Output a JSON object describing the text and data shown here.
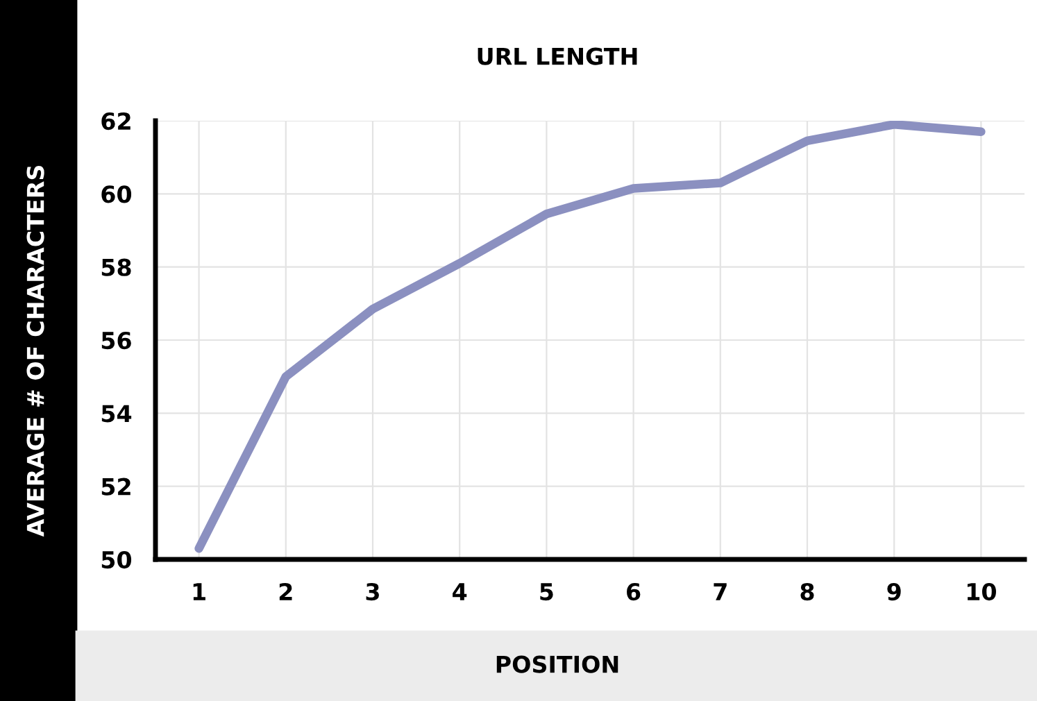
{
  "chart_data": {
    "type": "line",
    "title": "URL LENGTH",
    "xlabel": "POSITION",
    "ylabel": "AVERAGE # OF CHARACTERS",
    "x": [
      1,
      2,
      3,
      4,
      5,
      6,
      7,
      8,
      9,
      10
    ],
    "series": [
      {
        "color": "#8b90c0",
        "values": [
          50.3,
          55.0,
          56.85,
          58.1,
          59.45,
          60.15,
          60.3,
          61.45,
          61.9,
          61.7
        ]
      }
    ],
    "xlim": [
      0.5,
      10.5
    ],
    "xticks": [
      1,
      2,
      3,
      4,
      5,
      6,
      7,
      8,
      9,
      10
    ],
    "ylim": [
      50,
      62
    ],
    "yticks": [
      50,
      52,
      54,
      56,
      58,
      60,
      62
    ],
    "grid": true,
    "marker": "none",
    "line_style": "solid",
    "legend": false
  }
}
